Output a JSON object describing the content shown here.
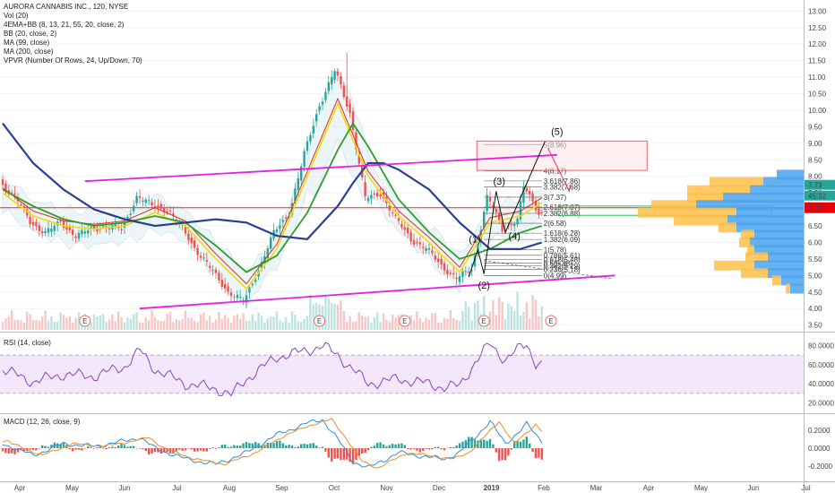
{
  "legend": {
    "title": "AURORA CANNABIS INC., 120, NYSE",
    "lines": [
      "Vol (20)",
      "4EMA+BB (8, 13, 21, 55, 20, close, 2)",
      "BB (20, close, 2)",
      "MA (99, close)",
      "MA (200, close)",
      "VPVR (Number Of Rows, 24, Up/Down, 70)"
    ]
  },
  "rsi_label": "RSI (14, close)",
  "macd_label": "MACD (12, 26, close, 9)",
  "colors": {
    "up": "#26a69a",
    "down": "#ef5350",
    "ma99": "#2e9e2e",
    "ma200": "#2a3f8f",
    "ema_yellow": "#f5d90a",
    "ema_red": "#d9302a",
    "channel": "#e61ee6",
    "rsi": "#8a44c4",
    "macd": "#2f8fd6",
    "signal": "#f08c2a",
    "last_price_bg": "#e8000b",
    "vpvr_up": "#ffc04a",
    "vpvr_down": "#4aa3f0"
  },
  "chart_data": {
    "type": "candlestick",
    "x_labels": [
      "Apr",
      "May",
      "Jun",
      "Jul",
      "Aug",
      "Sep",
      "Oct",
      "Nov",
      "Dec",
      "2019",
      "Feb",
      "Mar",
      "Apr",
      "May",
      "Jun",
      "Jul"
    ],
    "price_ticks": [
      "13.00",
      "12.50",
      "12.00",
      "11.50",
      "11.00",
      "10.50",
      "10.00",
      "9.50",
      "9.00",
      "8.50",
      "8.00",
      "7.50",
      "7.00",
      "6.50",
      "6.00",
      "5.50",
      "5.00",
      "4.50",
      "4.00",
      "3.50"
    ],
    "ylim": [
      3.3,
      13.2
    ],
    "price_path": [
      [
        0,
        7.8
      ],
      [
        5,
        7.4
      ],
      [
        10,
        6.6
      ],
      [
        15,
        6.3
      ],
      [
        20,
        6.6
      ],
      [
        25,
        6.2
      ],
      [
        30,
        6.4
      ],
      [
        35,
        6.5
      ],
      [
        40,
        6.4
      ],
      [
        45,
        7.4
      ],
      [
        50,
        7.1
      ],
      [
        55,
        7.0
      ],
      [
        60,
        6.4
      ],
      [
        65,
        5.7
      ],
      [
        70,
        5.1
      ],
      [
        75,
        4.5
      ],
      [
        80,
        4.2
      ],
      [
        85,
        5.2
      ],
      [
        90,
        6.3
      ],
      [
        95,
        6.9
      ],
      [
        100,
        8.7
      ],
      [
        105,
        10.2
      ],
      [
        110,
        11.2
      ],
      [
        115,
        9.9
      ],
      [
        120,
        7.3
      ],
      [
        125,
        7.5
      ],
      [
        130,
        6.7
      ],
      [
        135,
        6.1
      ],
      [
        140,
        5.8
      ],
      [
        145,
        5.3
      ],
      [
        150,
        4.9
      ],
      [
        155,
        5.2
      ],
      [
        160,
        7.4
      ],
      [
        165,
        6.4
      ],
      [
        170,
        6.7
      ],
      [
        172,
        7.7
      ],
      [
        175,
        7.2
      ],
      [
        177,
        6.9
      ]
    ],
    "n_bars": 178,
    "ema_yellow_path": [
      [
        0,
        7.5
      ],
      [
        10,
        6.8
      ],
      [
        20,
        6.5
      ],
      [
        30,
        6.4
      ],
      [
        40,
        6.5
      ],
      [
        50,
        6.9
      ],
      [
        60,
        6.5
      ],
      [
        70,
        5.5
      ],
      [
        80,
        4.6
      ],
      [
        90,
        5.8
      ],
      [
        100,
        8.0
      ],
      [
        110,
        10.2
      ],
      [
        120,
        8.0
      ],
      [
        130,
        6.8
      ],
      [
        140,
        6.0
      ],
      [
        150,
        5.1
      ],
      [
        160,
        6.6
      ],
      [
        170,
        6.8
      ],
      [
        177,
        7.2
      ]
    ],
    "ma99_path": [
      [
        0,
        7.6
      ],
      [
        10,
        7.1
      ],
      [
        20,
        6.7
      ],
      [
        30,
        6.5
      ],
      [
        40,
        6.6
      ],
      [
        50,
        6.8
      ],
      [
        60,
        6.6
      ],
      [
        70,
        5.9
      ],
      [
        80,
        5.1
      ],
      [
        90,
        5.6
      ],
      [
        100,
        6.9
      ],
      [
        110,
        8.8
      ],
      [
        115,
        9.6
      ],
      [
        120,
        8.9
      ],
      [
        130,
        7.3
      ],
      [
        140,
        6.3
      ],
      [
        150,
        5.5
      ],
      [
        160,
        5.8
      ],
      [
        170,
        6.3
      ],
      [
        177,
        6.5
      ]
    ],
    "ma200_path": [
      [
        0,
        9.6
      ],
      [
        10,
        8.4
      ],
      [
        20,
        7.6
      ],
      [
        30,
        7.0
      ],
      [
        40,
        6.7
      ],
      [
        50,
        6.5
      ],
      [
        60,
        6.6
      ],
      [
        70,
        6.7
      ],
      [
        80,
        6.6
      ],
      [
        90,
        6.2
      ],
      [
        100,
        6.1
      ],
      [
        110,
        7.1
      ],
      [
        115,
        7.8
      ],
      [
        120,
        8.4
      ],
      [
        125,
        8.4
      ],
      [
        130,
        8.2
      ],
      [
        140,
        7.6
      ],
      [
        150,
        6.6
      ],
      [
        160,
        5.8
      ],
      [
        170,
        5.8
      ],
      [
        177,
        6.0
      ]
    ],
    "channel_upper": [
      [
        27,
        7.85
      ],
      [
        182,
        8.65
      ]
    ],
    "channel_lower": [
      [
        45,
        4.0
      ],
      [
        201,
        5.0
      ]
    ],
    "horizontal_line": 7.05,
    "last_price": "7.05",
    "vpvr_level_labels": [
      "7.73",
      "45:32"
    ],
    "fib_levels": [
      {
        "label": "5(8.96)",
        "v": 8.96
      },
      {
        "label": "4(8.17)",
        "v": 8.17
      },
      {
        "label": "3.618(7.86)",
        "v": 7.86
      },
      {
        "label": "3.382(7.68)",
        "v": 7.68
      },
      {
        "label": "3(7.37)",
        "v": 7.37
      },
      {
        "label": "2.618(7.07)",
        "v": 7.07
      },
      {
        "label": "2.382(6.88)",
        "v": 6.88
      },
      {
        "label": "2(6.58)",
        "v": 6.58
      },
      {
        "label": "1.618(6.28)",
        "v": 6.28
      },
      {
        "label": "1.382(6.09)",
        "v": 6.09
      },
      {
        "label": "1(5.78)",
        "v": 5.78
      },
      {
        "label": "0.786(5.61)",
        "v": 5.61
      },
      {
        "label": "0.618(5.48)",
        "v": 5.48
      },
      {
        "label": "0.5(5.38)",
        "v": 5.38
      },
      {
        "label": "0.382(5.29)",
        "v": 5.29
      },
      {
        "label": "0.236(5.18)",
        "v": 5.18
      },
      {
        "label": "0(4.99)",
        "v": 4.99
      }
    ],
    "wave_labels": [
      "(1)",
      "(2)",
      "(3)",
      "(4)",
      "(5)"
    ],
    "wave_path": [
      [
        153,
        4.95
      ],
      [
        156,
        5.78
      ],
      [
        158,
        5.05
      ],
      [
        162,
        7.55
      ],
      [
        165,
        6.3
      ],
      [
        178,
        9.05
      ]
    ],
    "event_marker": "E",
    "rsi_ticks": [
      "80.0000",
      "60.0000",
      "40.0000",
      "20.0000"
    ],
    "rsi_ylim": [
      10,
      90
    ],
    "rsi_band": [
      30,
      70
    ],
    "rsi_path": [
      [
        0,
        55
      ],
      [
        10,
        42
      ],
      [
        20,
        50
      ],
      [
        30,
        48
      ],
      [
        40,
        58
      ],
      [
        45,
        75
      ],
      [
        50,
        55
      ],
      [
        60,
        40
      ],
      [
        70,
        35
      ],
      [
        75,
        28
      ],
      [
        80,
        45
      ],
      [
        90,
        68
      ],
      [
        100,
        75
      ],
      [
        105,
        80
      ],
      [
        110,
        70
      ],
      [
        115,
        55
      ],
      [
        120,
        40
      ],
      [
        130,
        45
      ],
      [
        140,
        40
      ],
      [
        145,
        36
      ],
      [
        150,
        38
      ],
      [
        155,
        62
      ],
      [
        160,
        82
      ],
      [
        165,
        65
      ],
      [
        170,
        78
      ],
      [
        172,
        82
      ],
      [
        175,
        62
      ],
      [
        177,
        60
      ]
    ],
    "macd_ticks": [
      "0.2000",
      "0.0000",
      "-0.2000"
    ],
    "macd_ylim": [
      -0.35,
      0.35
    ],
    "macd_path": [
      [
        0,
        0.05
      ],
      [
        10,
        -0.08
      ],
      [
        20,
        0.05
      ],
      [
        30,
        0.02
      ],
      [
        40,
        0.08
      ],
      [
        45,
        0.12
      ],
      [
        50,
        0.0
      ],
      [
        60,
        -0.12
      ],
      [
        70,
        -0.18
      ],
      [
        80,
        -0.05
      ],
      [
        90,
        0.15
      ],
      [
        100,
        0.28
      ],
      [
        105,
        0.32
      ],
      [
        110,
        0.1
      ],
      [
        115,
        -0.15
      ],
      [
        120,
        -0.22
      ],
      [
        130,
        -0.05
      ],
      [
        140,
        -0.1
      ],
      [
        145,
        -0.12
      ],
      [
        150,
        -0.05
      ],
      [
        155,
        0.12
      ],
      [
        160,
        0.3
      ],
      [
        165,
        0.05
      ],
      [
        170,
        0.2
      ],
      [
        172,
        0.27
      ],
      [
        175,
        0.15
      ],
      [
        177,
        0.08
      ]
    ]
  }
}
